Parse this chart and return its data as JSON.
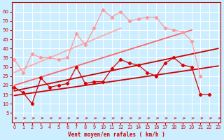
{
  "bg_color": "#cceeff",
  "grid_color": "#ffffff",
  "xlabel": "Vent moyen/en rafales ( km/h )",
  "xlabel_color": "#cc0000",
  "tick_color": "#cc0000",
  "arrow_color": "#cc2222",
  "x": [
    0,
    1,
    2,
    3,
    4,
    5,
    6,
    7,
    8,
    9,
    10,
    11,
    12,
    13,
    14,
    15,
    16,
    17,
    18,
    19,
    20,
    21,
    22,
    23
  ],
  "series": [
    {
      "name": "scattered_dark",
      "color": "#dd0000",
      "linewidth": 0.9,
      "marker": "D",
      "markersize": 2.2,
      "y": [
        19,
        16,
        10,
        24,
        19,
        20,
        21,
        30,
        21,
        22,
        22,
        29,
        34,
        32,
        31,
        27,
        25,
        32,
        35,
        31,
        30,
        15,
        15,
        null
      ]
    },
    {
      "name": "scattered_light",
      "color": "#ff9999",
      "linewidth": 0.9,
      "marker": "D",
      "markersize": 2.2,
      "y": [
        34,
        27,
        37,
        35,
        35,
        34,
        35,
        48,
        42,
        51,
        61,
        57,
        60,
        55,
        56,
        57,
        57,
        51,
        50,
        49,
        44,
        25,
        null,
        null
      ]
    },
    {
      "name": "trend_dark1",
      "color": "#cc0000",
      "linewidth": 1.3,
      "marker": null,
      "y": [
        14.5,
        15.2,
        15.9,
        16.6,
        17.3,
        17.9,
        18.6,
        19.3,
        20.0,
        20.7,
        21.4,
        22.1,
        22.8,
        23.5,
        24.2,
        24.9,
        25.6,
        26.3,
        27.0,
        27.7,
        28.4,
        29.1,
        29.8,
        30.5
      ]
    },
    {
      "name": "trend_dark2",
      "color": "#cc0000",
      "linewidth": 1.3,
      "marker": null,
      "y": [
        17.0,
        18.0,
        19.0,
        20.0,
        21.0,
        22.0,
        23.0,
        24.0,
        25.0,
        26.0,
        27.0,
        28.0,
        29.0,
        30.0,
        31.0,
        32.0,
        33.0,
        34.0,
        35.0,
        36.0,
        37.0,
        38.0,
        39.0,
        40.0
      ]
    },
    {
      "name": "trend_light1",
      "color": "#ff6666",
      "linewidth": 1.3,
      "marker": null,
      "y": [
        20.0,
        21.5,
        23.0,
        24.5,
        26.0,
        27.5,
        29.0,
        30.5,
        32.0,
        33.5,
        35.0,
        36.5,
        38.0,
        39.5,
        41.0,
        42.5,
        44.0,
        45.5,
        47.0,
        48.5,
        50.0,
        null,
        null,
        null
      ]
    },
    {
      "name": "trend_light2",
      "color": "#ffaaaa",
      "linewidth": 1.3,
      "marker": null,
      "y": [
        27.0,
        29.0,
        31.0,
        33.0,
        35.0,
        37.0,
        39.0,
        41.0,
        43.0,
        45.0,
        47.0,
        49.0,
        51.0,
        null,
        null,
        null,
        null,
        null,
        null,
        null,
        null,
        null,
        null,
        null
      ]
    }
  ],
  "ylim": [
    0,
    65
  ],
  "yticks": [
    5,
    10,
    15,
    20,
    25,
    30,
    35,
    40,
    45,
    50,
    55,
    60
  ],
  "xlim": [
    -0.3,
    23.3
  ],
  "figsize": [
    3.2,
    2.0
  ],
  "dpi": 100
}
